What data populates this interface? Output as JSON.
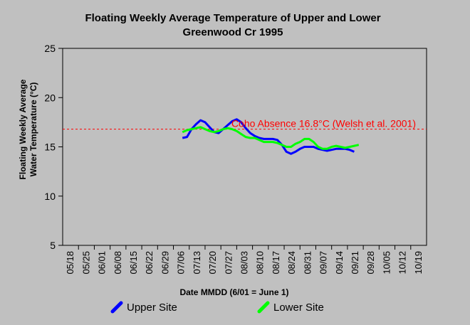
{
  "chart_data": {
    "type": "line",
    "title_lines": [
      "Floating Weekly Average Temperature of Upper and Lower",
      "Greenwood Cr 1995"
    ],
    "ylabel_lines": [
      "Floating Weekly Average",
      "Water Temperature (°C)"
    ],
    "xlabel": "Date MMDD (6/01 = June 1)",
    "ylim": [
      5,
      25
    ],
    "yticks": [
      5,
      10,
      15,
      20,
      25
    ],
    "x_categories": [
      "05/18",
      "05/25",
      "06/01",
      "06/08",
      "06/15",
      "06/22",
      "06/29",
      "07/06",
      "07/13",
      "07/20",
      "07/27",
      "08/03",
      "08/10",
      "08/17",
      "08/24",
      "08/31",
      "09/07",
      "09/14",
      "09/21",
      "09/28",
      "10/05",
      "10/12",
      "10/19"
    ],
    "grid": false,
    "legend_position": "bottom",
    "threshold": {
      "value": 16.8,
      "label": "Coho Absence 16.8°C (Welsh et al. 2001)",
      "color": "#ff0000"
    },
    "series": [
      {
        "name": "Upper Site",
        "color": "#0000ff",
        "points": [
          [
            "07/10",
            15.9
          ],
          [
            "07/12",
            16.0
          ],
          [
            "07/14",
            16.8
          ],
          [
            "07/16",
            17.3
          ],
          [
            "07/18",
            17.7
          ],
          [
            "07/20",
            17.5
          ],
          [
            "07/22",
            17.0
          ],
          [
            "07/24",
            16.5
          ],
          [
            "07/26",
            16.4
          ],
          [
            "07/28",
            16.8
          ],
          [
            "07/30",
            17.2
          ],
          [
            "08/01",
            17.6
          ],
          [
            "08/03",
            17.8
          ],
          [
            "08/05",
            17.5
          ],
          [
            "08/07",
            16.9
          ],
          [
            "08/09",
            16.4
          ],
          [
            "08/11",
            16.1
          ],
          [
            "08/13",
            15.9
          ],
          [
            "08/15",
            15.8
          ],
          [
            "08/17",
            15.8
          ],
          [
            "08/19",
            15.8
          ],
          [
            "08/21",
            15.7
          ],
          [
            "08/23",
            15.2
          ],
          [
            "08/25",
            14.5
          ],
          [
            "08/27",
            14.3
          ],
          [
            "08/29",
            14.5
          ],
          [
            "08/31",
            14.8
          ],
          [
            "09/02",
            15.0
          ],
          [
            "09/04",
            15.0
          ],
          [
            "09/06",
            15.0
          ],
          [
            "09/08",
            14.8
          ],
          [
            "09/10",
            14.7
          ],
          [
            "09/12",
            14.6
          ],
          [
            "09/14",
            14.7
          ],
          [
            "09/16",
            14.8
          ],
          [
            "09/18",
            14.8
          ],
          [
            "09/20",
            14.8
          ],
          [
            "09/22",
            14.7
          ],
          [
            "09/24",
            14.5
          ]
        ]
      },
      {
        "name": "Lower Site",
        "color": "#00ff00",
        "points": [
          [
            "07/10",
            16.5
          ],
          [
            "07/12",
            16.7
          ],
          [
            "07/14",
            16.8
          ],
          [
            "07/16",
            16.9
          ],
          [
            "07/18",
            17.0
          ],
          [
            "07/20",
            16.8
          ],
          [
            "07/22",
            16.6
          ],
          [
            "07/24",
            16.5
          ],
          [
            "07/26",
            16.6
          ],
          [
            "07/28",
            16.8
          ],
          [
            "07/30",
            16.9
          ],
          [
            "08/01",
            16.8
          ],
          [
            "08/03",
            16.6
          ],
          [
            "08/05",
            16.3
          ],
          [
            "08/07",
            16.0
          ],
          [
            "08/09",
            15.9
          ],
          [
            "08/11",
            15.9
          ],
          [
            "08/13",
            15.7
          ],
          [
            "08/15",
            15.5
          ],
          [
            "08/17",
            15.5
          ],
          [
            "08/19",
            15.5
          ],
          [
            "08/21",
            15.4
          ],
          [
            "08/23",
            15.2
          ],
          [
            "08/25",
            15.0
          ],
          [
            "08/27",
            15.0
          ],
          [
            "08/29",
            15.3
          ],
          [
            "08/31",
            15.5
          ],
          [
            "09/02",
            15.8
          ],
          [
            "09/04",
            15.8
          ],
          [
            "09/06",
            15.5
          ],
          [
            "09/08",
            15.0
          ],
          [
            "09/10",
            14.8
          ],
          [
            "09/12",
            14.8
          ],
          [
            "09/14",
            15.0
          ],
          [
            "09/16",
            15.1
          ],
          [
            "09/18",
            15.0
          ],
          [
            "09/20",
            14.9
          ],
          [
            "09/22",
            15.0
          ],
          [
            "09/24",
            15.1
          ],
          [
            "09/26",
            15.2
          ]
        ]
      }
    ]
  }
}
